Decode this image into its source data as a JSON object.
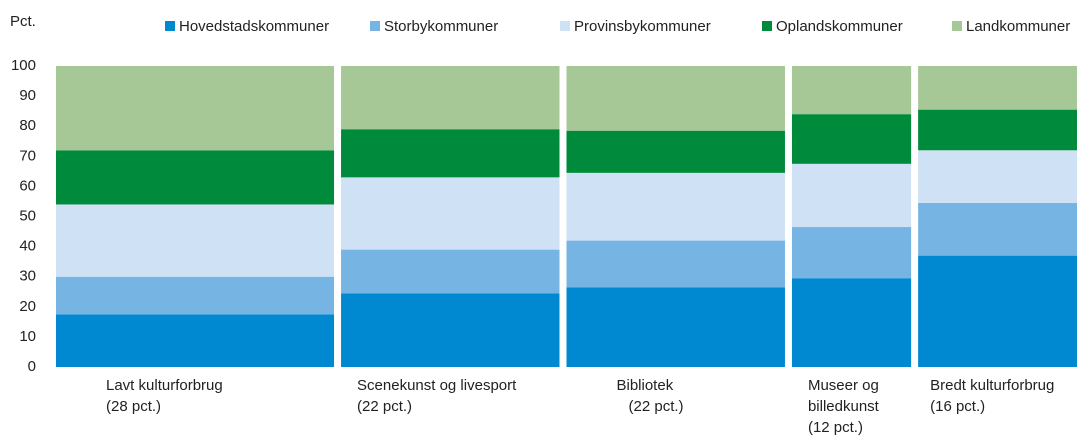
{
  "chart_data": {
    "type": "mekko",
    "ylabel": "Pct.",
    "categories": [
      [
        "Lavt kulturforbrug",
        "(28 pct.)"
      ],
      [
        "Scenekunst og livesport",
        "(22 pct.)"
      ],
      [
        "Bibliotek",
        "(22 pct.)"
      ],
      [
        "Museer og",
        "billedkunst",
        "(12 pct.)"
      ],
      [
        "Bredt kulturforbrug",
        "(16 pct.)"
      ]
    ],
    "widths": [
      28,
      22,
      22,
      12,
      16
    ],
    "series": [
      {
        "name": "Hovedstadskommuner",
        "color": "#0089d1",
        "values": [
          17.5,
          24.5,
          26.5,
          29.5,
          37
        ]
      },
      {
        "name": "Storbykommuner",
        "color": "#76b5e3",
        "values": [
          12.5,
          14.5,
          15.5,
          17,
          17.5
        ]
      },
      {
        "name": "Provinsbykommuner",
        "color": "#cfe2f5",
        "values": [
          24,
          24,
          22.5,
          21,
          17.5
        ]
      },
      {
        "name": "Oplandskommuner",
        "color": "#008a3c",
        "values": [
          18,
          16,
          14,
          16.5,
          13.5
        ]
      },
      {
        "name": "Landkommuner",
        "color": "#a6c796",
        "values": [
          28,
          21,
          21.5,
          16,
          14.5
        ]
      }
    ],
    "ylim": [
      0,
      100
    ],
    "yticks": [
      0,
      10,
      20,
      30,
      40,
      50,
      60,
      70,
      80,
      90,
      100
    ]
  }
}
